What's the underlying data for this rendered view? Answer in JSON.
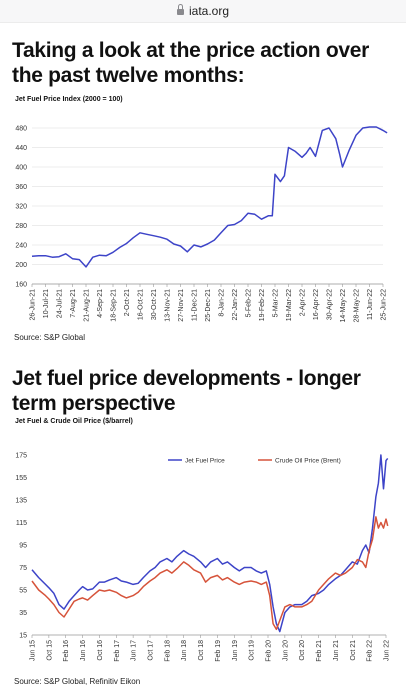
{
  "browser": {
    "url": "iata.org"
  },
  "section1": {
    "heading": "Taking a look at the price action over the past twelve months:",
    "source": "Source: S&P Global"
  },
  "section2": {
    "heading": "Jet fuel price developments - longer term perspective",
    "source": "Source: S&P Global, Refinitiv Eikon"
  },
  "chart_data": [
    {
      "type": "line",
      "title": "Jet Fuel Price Index (2000 = 100)",
      "xlabel": "",
      "ylabel": "",
      "ylim": [
        160,
        480
      ],
      "yticks": [
        160,
        200,
        240,
        280,
        320,
        360,
        400,
        440,
        480
      ],
      "grid": true,
      "color": "#3d44c8",
      "categories": [
        "26-Jun-21",
        "10-Jul-21",
        "24-Jul-21",
        "7-Aug-21",
        "21-Aug-21",
        "4-Sep-21",
        "18-Sep-21",
        "2-Oct-21",
        "16-Oct-21",
        "30-Oct-21",
        "13-Nov-21",
        "27-Nov-21",
        "11-Dec-21",
        "25-Dec-21",
        "8-Jan-22",
        "22-Jan-22",
        "5-Feb-22",
        "19-Feb-22",
        "5-Mar-22",
        "19-Mar-22",
        "2-Apr-22",
        "16-Apr-22",
        "30-Apr-22",
        "14-May-22",
        "28-May-22",
        "11-Jun-22",
        "25-Jun-22"
      ],
      "series": [
        {
          "x": [
            0,
            0.5,
            1,
            1.5,
            2,
            2.5,
            3,
            3.5,
            4,
            4.5,
            5,
            5.5,
            6,
            6.5,
            7,
            7.5,
            8,
            8.5,
            9,
            9.5,
            10,
            10.5,
            11,
            11.5,
            12,
            12.5,
            13,
            13.5,
            14,
            14.5,
            15,
            15.5,
            16,
            16.5,
            17,
            17.5,
            17.8,
            18,
            18.4,
            18.7,
            19,
            19.5,
            20,
            20.3,
            20.6,
            21,
            21.5,
            22,
            22.5,
            22.8,
            23,
            23.5,
            24,
            24.5,
            25,
            25.5,
            26,
            26.3
          ],
          "values": [
            217,
            218,
            218,
            215,
            216,
            222,
            212,
            210,
            195,
            215,
            219,
            218,
            225,
            235,
            243,
            255,
            265,
            262,
            259,
            256,
            252,
            242,
            238,
            226,
            240,
            236,
            242,
            250,
            265,
            280,
            282,
            290,
            305,
            303,
            293,
            300,
            300,
            385,
            370,
            382,
            440,
            432,
            420,
            428,
            440,
            422,
            475,
            480,
            458,
            425,
            400,
            435,
            465,
            480,
            482,
            482,
            475,
            470
          ]
        }
      ]
    },
    {
      "type": "line",
      "title": "Jet Fuel & Crude Oil Price ($/barrel)",
      "xlabel": "",
      "ylabel": "",
      "ylim": [
        15,
        175
      ],
      "yticks": [
        15,
        35,
        55,
        75,
        95,
        115,
        135,
        155,
        175
      ],
      "grid": false,
      "legend": "top-center",
      "categories": [
        "Jun 15",
        "Oct 15",
        "Feb 16",
        "Jun 16",
        "Oct 16",
        "Feb 17",
        "Jun 17",
        "Oct 17",
        "Feb 18",
        "Jun 18",
        "Oct 18",
        "Feb 19",
        "Jun 19",
        "Oct 19",
        "Feb 20",
        "Jun 20",
        "Oct 20",
        "Feb 21",
        "Jun 21",
        "Oct 21",
        "Feb 22",
        "Jun 22"
      ],
      "series": [
        {
          "name": "Jet Fuel Price",
          "color": "#3d44c8",
          "x": [
            0,
            0.4,
            0.8,
            1,
            1.3,
            1.6,
            1.9,
            2.2,
            2.5,
            2.8,
            3,
            3.3,
            3.6,
            4,
            4.3,
            4.6,
            5,
            5.3,
            5.6,
            6,
            6.3,
            6.6,
            7,
            7.3,
            7.6,
            8,
            8.3,
            8.6,
            9,
            9.3,
            9.6,
            10,
            10.3,
            10.6,
            11,
            11.3,
            11.6,
            12,
            12.3,
            12.6,
            13,
            13.3,
            13.6,
            13.9,
            14.1,
            14.3,
            14.5,
            14.7,
            15,
            15.3,
            15.6,
            16,
            16.3,
            16.6,
            17,
            17.3,
            17.6,
            18,
            18.3,
            18.6,
            19,
            19.3,
            19.6,
            19.8,
            20,
            20.2,
            20.4,
            20.55,
            20.7,
            20.85,
            21,
            21.1
          ],
          "values": [
            73,
            66,
            60,
            57,
            52,
            42,
            38,
            45,
            50,
            55,
            58,
            55,
            56,
            62,
            62,
            64,
            66,
            63,
            62,
            60,
            61,
            66,
            72,
            75,
            80,
            83,
            80,
            85,
            90,
            87,
            85,
            80,
            75,
            80,
            83,
            78,
            80,
            75,
            72,
            75,
            75,
            72,
            70,
            72,
            60,
            40,
            25,
            18,
            35,
            40,
            42,
            42,
            45,
            50,
            52,
            55,
            60,
            65,
            68,
            73,
            80,
            78,
            90,
            95,
            88,
            110,
            138,
            150,
            175,
            145,
            170,
            172
          ]
        },
        {
          "name": "Crude Oil Price (Brent)",
          "color": "#d6533a",
          "x": [
            0,
            0.4,
            0.8,
            1,
            1.3,
            1.6,
            1.9,
            2.2,
            2.5,
            2.8,
            3,
            3.3,
            3.6,
            4,
            4.3,
            4.6,
            5,
            5.3,
            5.6,
            6,
            6.3,
            6.6,
            7,
            7.3,
            7.6,
            8,
            8.3,
            8.6,
            9,
            9.3,
            9.6,
            10,
            10.3,
            10.6,
            11,
            11.3,
            11.6,
            12,
            12.3,
            12.6,
            13,
            13.3,
            13.6,
            13.9,
            14.1,
            14.3,
            14.5,
            14.7,
            15,
            15.3,
            15.6,
            16,
            16.3,
            16.6,
            17,
            17.3,
            17.6,
            18,
            18.3,
            18.6,
            19,
            19.3,
            19.6,
            19.8,
            20,
            20.2,
            20.4,
            20.55,
            20.7,
            20.85,
            21,
            21.1
          ],
          "values": [
            63,
            55,
            50,
            47,
            42,
            35,
            31,
            38,
            45,
            47,
            48,
            46,
            50,
            55,
            54,
            55,
            53,
            50,
            48,
            50,
            53,
            58,
            63,
            66,
            70,
            73,
            70,
            74,
            80,
            77,
            73,
            70,
            62,
            66,
            68,
            64,
            66,
            62,
            60,
            62,
            63,
            62,
            60,
            62,
            50,
            25,
            20,
            28,
            40,
            42,
            40,
            40,
            42,
            45,
            55,
            60,
            65,
            70,
            68,
            70,
            75,
            82,
            80,
            75,
            90,
            100,
            120,
            110,
            115,
            110,
            118,
            112
          ]
        }
      ]
    }
  ]
}
